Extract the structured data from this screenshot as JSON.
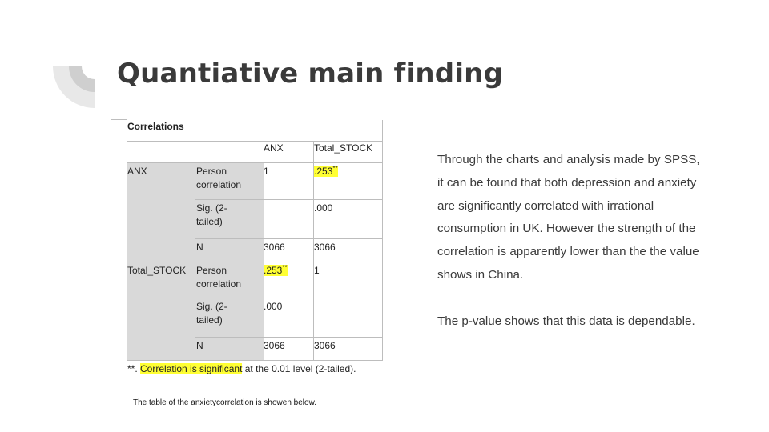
{
  "slide": {
    "title": "Quantiative main finding",
    "note": "The table of the anxietycorrelation is showen below.",
    "body": {
      "paragraph1": "Through the charts and analysis made by SPSS, it can be found that both depression and anxiety are significantly correlated with irrational consumption in UK. However the strength of the correlation is apparently lower than the the value shows in China.",
      "paragraph2": "The p-value shows that this data is dependable."
    }
  },
  "table": {
    "caption": "Correlations",
    "headers": [
      "ANX",
      "Total_STOCK"
    ],
    "groups": [
      {
        "label": "ANX",
        "rows": [
          {
            "stat": "Person correlation",
            "anx": "",
            "total": ".253",
            "total_sup": "**"
          },
          {
            "stat": "Sig. (2-tailed)",
            "anx": "",
            "total": ".000"
          },
          {
            "stat": "N",
            "anx": "3066",
            "total": "3066"
          }
        ],
        "row0_anx": "1"
      },
      {
        "label": "Total_STOCK",
        "rows": [
          {
            "stat": "Person correlation",
            "anx": ".253",
            "anx_sup": "**",
            "total": "1"
          },
          {
            "stat": "Sig. (2-tailed)",
            "anx": ".000",
            "total": ""
          },
          {
            "stat": "N",
            "anx": "3066",
            "total": "3066"
          }
        ]
      }
    ],
    "footnote": {
      "prefix": "**. ",
      "highlight": "Correlation is significant",
      "suffix": " at the 0.01 level (2-tailed)."
    }
  },
  "colors": {
    "title": "#3a3a3a",
    "highlight": "#ffff33",
    "shade": "#d9d9d9"
  }
}
